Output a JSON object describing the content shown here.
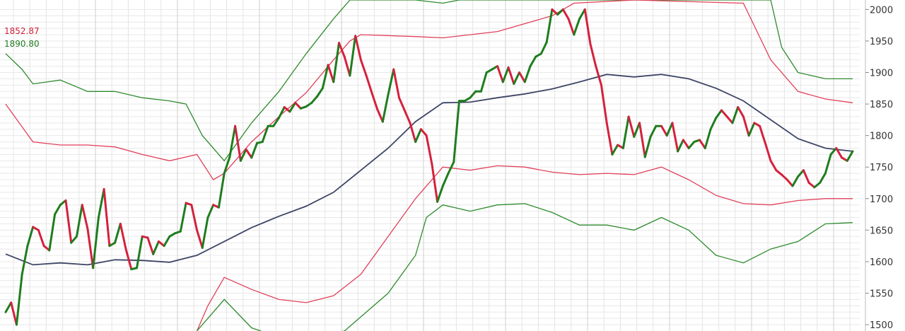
{
  "readouts": [
    {
      "value": "1852.87",
      "color": "#d0203a"
    },
    {
      "value": "1890.80",
      "color": "#1f7a1f"
    }
  ],
  "chart_data": {
    "type": "line",
    "ylim": [
      1490,
      2015
    ],
    "y_ticks": [
      2000,
      1950,
      1900,
      1850,
      1800,
      1750,
      1700,
      1650,
      1600,
      1550,
      1500
    ],
    "x_count": 156,
    "price": [
      [
        0,
        1520
      ],
      [
        1,
        1535
      ],
      [
        2,
        1500
      ],
      [
        3,
        1580
      ],
      [
        4,
        1625
      ],
      [
        5,
        1655
      ],
      [
        6,
        1650
      ],
      [
        7,
        1625
      ],
      [
        8,
        1618
      ],
      [
        9,
        1675
      ],
      [
        10,
        1690
      ],
      [
        11,
        1697
      ],
      [
        12,
        1630
      ],
      [
        13,
        1640
      ],
      [
        14,
        1690
      ],
      [
        15,
        1652
      ],
      [
        16,
        1590
      ],
      [
        17,
        1670
      ],
      [
        18,
        1715
      ],
      [
        19,
        1625
      ],
      [
        20,
        1630
      ],
      [
        21,
        1660
      ],
      [
        22,
        1620
      ],
      [
        23,
        1588
      ],
      [
        24,
        1590
      ],
      [
        25,
        1640
      ],
      [
        26,
        1638
      ],
      [
        27,
        1612
      ],
      [
        28,
        1632
      ],
      [
        29,
        1625
      ],
      [
        30,
        1640
      ],
      [
        31,
        1645
      ],
      [
        32,
        1648
      ],
      [
        33,
        1693
      ],
      [
        34,
        1690
      ],
      [
        35,
        1650
      ],
      [
        36,
        1622
      ],
      [
        37,
        1670
      ],
      [
        38,
        1690
      ],
      [
        39,
        1686
      ],
      [
        40,
        1740
      ],
      [
        41,
        1766
      ],
      [
        42,
        1815
      ],
      [
        43,
        1760
      ],
      [
        44,
        1778
      ],
      [
        45,
        1765
      ],
      [
        46,
        1788
      ],
      [
        47,
        1790
      ],
      [
        48,
        1815
      ],
      [
        49,
        1815
      ],
      [
        50,
        1828
      ],
      [
        51,
        1845
      ],
      [
        52,
        1838
      ],
      [
        53,
        1852
      ],
      [
        54,
        1843
      ],
      [
        55,
        1846
      ],
      [
        56,
        1852
      ],
      [
        57,
        1862
      ],
      [
        58,
        1875
      ],
      [
        59,
        1912
      ],
      [
        60,
        1885
      ],
      [
        61,
        1947
      ],
      [
        62,
        1925
      ],
      [
        63,
        1895
      ],
      [
        64,
        1958
      ],
      [
        65,
        1920
      ],
      [
        66,
        1895
      ],
      [
        67,
        1868
      ],
      [
        68,
        1842
      ],
      [
        69,
        1822
      ],
      [
        70,
        1865
      ],
      [
        71,
        1905
      ],
      [
        72,
        1860
      ],
      [
        73,
        1840
      ],
      [
        74,
        1820
      ],
      [
        75,
        1790
      ],
      [
        76,
        1810
      ],
      [
        77,
        1800
      ],
      [
        78,
        1755
      ],
      [
        79,
        1695
      ],
      [
        80,
        1720
      ],
      [
        81,
        1740
      ],
      [
        82,
        1758
      ],
      [
        83,
        1855
      ],
      [
        84,
        1855
      ],
      [
        85,
        1860
      ],
      [
        86,
        1870
      ],
      [
        87,
        1870
      ],
      [
        88,
        1900
      ],
      [
        89,
        1905
      ],
      [
        90,
        1910
      ],
      [
        91,
        1885
      ],
      [
        92,
        1908
      ],
      [
        93,
        1882
      ],
      [
        94,
        1900
      ],
      [
        95,
        1885
      ],
      [
        96,
        1910
      ],
      [
        97,
        1925
      ],
      [
        98,
        1930
      ],
      [
        99,
        1948
      ],
      [
        100,
        2000
      ],
      [
        101,
        1992
      ],
      [
        102,
        2000
      ],
      [
        103,
        1985
      ],
      [
        104,
        1960
      ],
      [
        105,
        1985
      ],
      [
        106,
        2000
      ],
      [
        107,
        1945
      ],
      [
        108,
        1910
      ],
      [
        109,
        1880
      ],
      [
        110,
        1820
      ],
      [
        111,
        1770
      ],
      [
        112,
        1785
      ],
      [
        113,
        1780
      ],
      [
        114,
        1830
      ],
      [
        115,
        1798
      ],
      [
        116,
        1820
      ],
      [
        117,
        1766
      ],
      [
        118,
        1798
      ],
      [
        119,
        1815
      ],
      [
        120,
        1815
      ],
      [
        121,
        1800
      ],
      [
        122,
        1820
      ],
      [
        123,
        1775
      ],
      [
        124,
        1793
      ],
      [
        125,
        1780
      ],
      [
        126,
        1790
      ],
      [
        127,
        1793
      ],
      [
        128,
        1780
      ],
      [
        129,
        1810
      ],
      [
        130,
        1828
      ],
      [
        131,
        1840
      ],
      [
        132,
        1830
      ],
      [
        133,
        1820
      ],
      [
        134,
        1845
      ],
      [
        135,
        1830
      ],
      [
        136,
        1800
      ],
      [
        137,
        1820
      ],
      [
        138,
        1815
      ],
      [
        139,
        1788
      ],
      [
        140,
        1760
      ],
      [
        141,
        1745
      ],
      [
        142,
        1738
      ],
      [
        143,
        1730
      ],
      [
        144,
        1720
      ],
      [
        145,
        1735
      ],
      [
        146,
        1745
      ],
      [
        147,
        1725
      ],
      [
        148,
        1718
      ],
      [
        149,
        1725
      ],
      [
        150,
        1740
      ],
      [
        151,
        1770
      ],
      [
        152,
        1780
      ],
      [
        153,
        1765
      ],
      [
        154,
        1760
      ],
      [
        155,
        1775
      ]
    ],
    "ma": [
      [
        0,
        1612
      ],
      [
        5,
        1595
      ],
      [
        10,
        1598
      ],
      [
        15,
        1595
      ],
      [
        20,
        1603
      ],
      [
        25,
        1602
      ],
      [
        30,
        1599
      ],
      [
        35,
        1610
      ],
      [
        40,
        1632
      ],
      [
        45,
        1654
      ],
      [
        50,
        1672
      ],
      [
        55,
        1688
      ],
      [
        60,
        1710
      ],
      [
        65,
        1745
      ],
      [
        70,
        1780
      ],
      [
        75,
        1822
      ],
      [
        80,
        1852
      ],
      [
        85,
        1853
      ],
      [
        90,
        1860
      ],
      [
        95,
        1866
      ],
      [
        100,
        1874
      ],
      [
        105,
        1885
      ],
      [
        110,
        1897
      ],
      [
        115,
        1893
      ],
      [
        120,
        1897
      ],
      [
        125,
        1890
      ],
      [
        130,
        1875
      ],
      [
        135,
        1855
      ],
      [
        140,
        1825
      ],
      [
        145,
        1795
      ],
      [
        150,
        1780
      ],
      [
        155,
        1775
      ]
    ],
    "band_outer_upper": [
      [
        0,
        1930
      ],
      [
        3,
        1905
      ],
      [
        5,
        1882
      ],
      [
        10,
        1888
      ],
      [
        15,
        1870
      ],
      [
        20,
        1870
      ],
      [
        25,
        1860
      ],
      [
        30,
        1855
      ],
      [
        33,
        1850
      ],
      [
        36,
        1800
      ],
      [
        40,
        1760
      ],
      [
        45,
        1820
      ],
      [
        50,
        1870
      ],
      [
        55,
        1930
      ],
      [
        60,
        1985
      ],
      [
        63,
        2015
      ],
      [
        75,
        2015
      ],
      [
        80,
        2010
      ],
      [
        83,
        2015
      ],
      [
        90,
        2015
      ],
      [
        100,
        2015
      ],
      [
        140,
        2015
      ],
      [
        142,
        1940
      ],
      [
        145,
        1900
      ],
      [
        150,
        1890
      ],
      [
        155,
        1890
      ]
    ],
    "band_red_upper": [
      [
        0,
        1850
      ],
      [
        5,
        1790
      ],
      [
        10,
        1785
      ],
      [
        15,
        1785
      ],
      [
        20,
        1782
      ],
      [
        25,
        1770
      ],
      [
        30,
        1760
      ],
      [
        35,
        1770
      ],
      [
        38,
        1730
      ],
      [
        40,
        1740
      ],
      [
        45,
        1790
      ],
      [
        50,
        1830
      ],
      [
        55,
        1868
      ],
      [
        60,
        1920
      ],
      [
        63,
        1950
      ],
      [
        65,
        1960
      ],
      [
        75,
        1957
      ],
      [
        80,
        1955
      ],
      [
        90,
        1965
      ],
      [
        100,
        1990
      ],
      [
        104,
        2010
      ],
      [
        115,
        2015
      ],
      [
        135,
        2010
      ],
      [
        140,
        1920
      ],
      [
        145,
        1870
      ],
      [
        150,
        1858
      ],
      [
        155,
        1852
      ]
    ],
    "band_red_lower": [
      [
        35,
        1490
      ],
      [
        37,
        1530
      ],
      [
        40,
        1575
      ],
      [
        45,
        1556
      ],
      [
        50,
        1540
      ],
      [
        55,
        1535
      ],
      [
        60,
        1546
      ],
      [
        65,
        1580
      ],
      [
        70,
        1640
      ],
      [
        75,
        1700
      ],
      [
        80,
        1750
      ],
      [
        85,
        1745
      ],
      [
        90,
        1752
      ],
      [
        95,
        1750
      ],
      [
        100,
        1742
      ],
      [
        105,
        1738
      ],
      [
        110,
        1740
      ],
      [
        115,
        1738
      ],
      [
        120,
        1750
      ],
      [
        125,
        1730
      ],
      [
        130,
        1705
      ],
      [
        135,
        1692
      ],
      [
        140,
        1690
      ],
      [
        145,
        1697
      ],
      [
        150,
        1700
      ],
      [
        155,
        1700
      ]
    ],
    "band_outer_lower": [
      [
        35,
        1490
      ],
      [
        37,
        1510
      ],
      [
        40,
        1540
      ],
      [
        45,
        1495
      ],
      [
        50,
        1480
      ],
      [
        55,
        1480
      ],
      [
        62,
        1490
      ],
      [
        70,
        1550
      ],
      [
        75,
        1610
      ],
      [
        77,
        1670
      ],
      [
        80,
        1690
      ],
      [
        85,
        1680
      ],
      [
        90,
        1690
      ],
      [
        95,
        1692
      ],
      [
        100,
        1678
      ],
      [
        105,
        1658
      ],
      [
        110,
        1658
      ],
      [
        115,
        1650
      ],
      [
        120,
        1670
      ],
      [
        125,
        1650
      ],
      [
        130,
        1610
      ],
      [
        135,
        1598
      ],
      [
        140,
        1620
      ],
      [
        145,
        1632
      ],
      [
        150,
        1660
      ],
      [
        155,
        1662
      ]
    ]
  }
}
